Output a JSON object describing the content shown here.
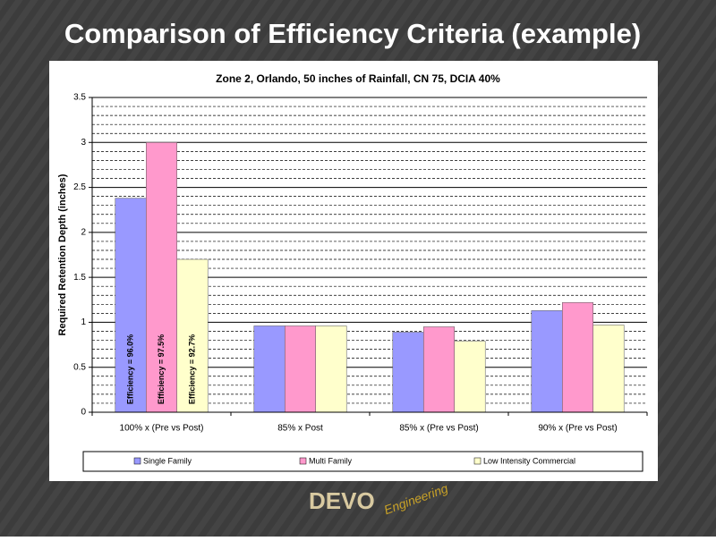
{
  "slide_title": "Comparison of Efficiency Criteria (example)",
  "logo": {
    "name": "DEVO",
    "tagline": "Engineering"
  },
  "chart_data": {
    "type": "bar",
    "title": "Zone 2, Orlando, 50 inches of Rainfall, CN 75, DCIA 40%",
    "y_label": "Required Retention Depth (inches)",
    "categories": [
      "100% x (Pre vs Post)",
      "85% x Post",
      "85% x (Pre vs Post)",
      "90% x (Pre vs Post)"
    ],
    "series": [
      {
        "name": "Single Family",
        "color": "#9999ff",
        "values": [
          2.38,
          0.96,
          0.89,
          1.13
        ],
        "annotation": "Efficiency = 96.0%"
      },
      {
        "name": "Multi Family",
        "color": "#ff99cc",
        "values": [
          3.0,
          0.96,
          0.95,
          1.22
        ],
        "annotation": "Efficiency = 97.5%"
      },
      {
        "name": "Low Intensity Commercial",
        "color": "#ffffcc",
        "values": [
          1.7,
          0.96,
          0.79,
          0.97
        ],
        "annotation": "Efficiency = 92.7%"
      }
    ],
    "ylim": [
      0,
      3.5
    ],
    "yticks": [
      0,
      0.5,
      1,
      1.5,
      2,
      2.5,
      3,
      3.5
    ],
    "grid": true,
    "legend": "bottom"
  }
}
